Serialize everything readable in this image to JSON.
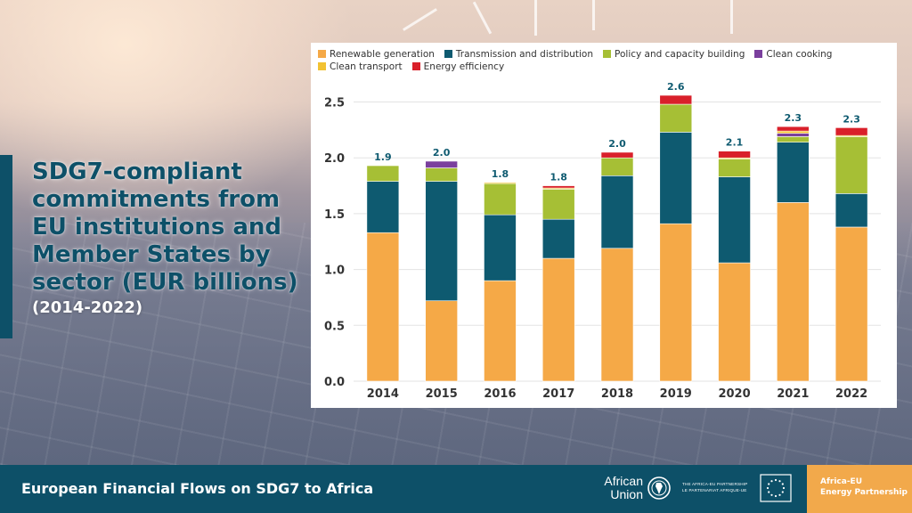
{
  "slide": {
    "title": "SDG7-compliant commitments from EU institutions and Member States by sector (EUR billions)",
    "subtitle": "(2014-2022)"
  },
  "footer": {
    "text": "European Financial Flows on SDG7 to Africa",
    "african_union_line1": "African",
    "african_union_line2": "Union",
    "partnership_line1": "THE AFRICA-EU PARTNERSHIP",
    "partnership_line2": "LE PARTENARIAT AFRIQUE-UE",
    "aeep_line1": "Africa-EU",
    "aeep_line2": "Energy Partnership"
  },
  "icons": {
    "au_logo": "globe-icon",
    "eu_flag": "eu-flag-icon"
  },
  "colors": {
    "brand_teal": "#0d5068",
    "brand_orange": "#f2a94b"
  },
  "chart_data": {
    "type": "bar",
    "stacked": true,
    "title": "",
    "xlabel": "",
    "ylabel": "",
    "ylim": [
      0,
      2.6
    ],
    "yticks": [
      "0.0",
      "0.5",
      "1.0",
      "1.5",
      "2.0",
      "2.5"
    ],
    "grid": true,
    "legend_position": "top",
    "categories": [
      "2014",
      "2015",
      "2016",
      "2017",
      "2018",
      "2019",
      "2020",
      "2021",
      "2022"
    ],
    "totals": [
      "1.9",
      "2.0",
      "1.8",
      "1.8",
      "2.0",
      "2.6",
      "2.1",
      "2.3",
      "2.3"
    ],
    "series": [
      {
        "name": "Renewable generation",
        "color": "#f5a947",
        "values": [
          1.33,
          0.72,
          0.9,
          1.1,
          1.19,
          1.41,
          1.06,
          1.6,
          1.38
        ]
      },
      {
        "name": "Transmission and distribution",
        "color": "#0e5a70",
        "values": [
          0.46,
          1.07,
          0.59,
          0.35,
          0.65,
          0.82,
          0.77,
          0.54,
          0.3
        ]
      },
      {
        "name": "Policy and capacity building",
        "color": "#a6bf35",
        "values": [
          0.14,
          0.12,
          0.28,
          0.27,
          0.16,
          0.25,
          0.16,
          0.05,
          0.51
        ]
      },
      {
        "name": "Clean cooking",
        "color": "#7a3f9d",
        "values": [
          0.0,
          0.06,
          0.0,
          0.0,
          0.0,
          0.0,
          0.0,
          0.03,
          0.0
        ]
      },
      {
        "name": "Clean transport",
        "color": "#f2c232",
        "values": [
          0.0,
          0.0,
          0.01,
          0.01,
          0.0,
          0.0,
          0.01,
          0.02,
          0.01
        ]
      },
      {
        "name": "Energy efficiency",
        "color": "#d9202a",
        "values": [
          0.0,
          0.0,
          0.0,
          0.02,
          0.05,
          0.08,
          0.06,
          0.04,
          0.07
        ]
      }
    ]
  }
}
